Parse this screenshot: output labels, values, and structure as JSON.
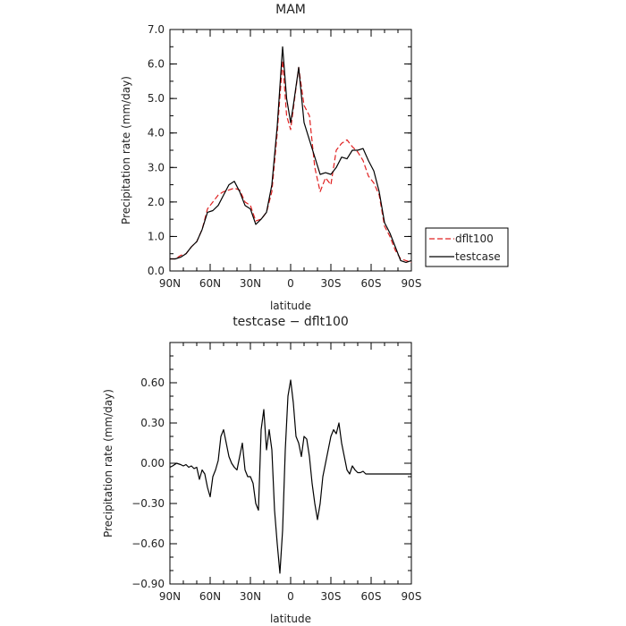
{
  "chart_data": [
    {
      "type": "line",
      "title": "MAM",
      "xlabel": "latitude",
      "ylabel": "Precipitation rate (mm/day)",
      "xlim": [
        90,
        -90
      ],
      "ylim": [
        0.0,
        7.0
      ],
      "xticks": [
        {
          "value": 90,
          "label": "90N"
        },
        {
          "value": 60,
          "label": "60N"
        },
        {
          "value": 30,
          "label": "30N"
        },
        {
          "value": 0,
          "label": "0"
        },
        {
          "value": -30,
          "label": "30S"
        },
        {
          "value": -60,
          "label": "60S"
        },
        {
          "value": -90,
          "label": "90S"
        }
      ],
      "yticks": [
        {
          "value": 0.0,
          "label": "0.0"
        },
        {
          "value": 1.0,
          "label": "1.0"
        },
        {
          "value": 2.0,
          "label": "2.0"
        },
        {
          "value": 3.0,
          "label": "3.0"
        },
        {
          "value": 4.0,
          "label": "4.0"
        },
        {
          "value": 5.0,
          "label": "5.0"
        },
        {
          "value": 6.0,
          "label": "6.0"
        },
        {
          "value": 7.0,
          "label": "7.0"
        }
      ],
      "legend_position": "right",
      "series": [
        {
          "name": "dflt100",
          "color": "#e02020",
          "style": "dashed",
          "x": [
            90,
            86,
            82,
            78,
            74,
            70,
            66,
            62,
            58,
            54,
            50,
            46,
            42,
            38,
            34,
            30,
            26,
            22,
            18,
            14,
            10,
            6,
            3,
            0,
            -2,
            -6,
            -10,
            -14,
            -18,
            -22,
            -26,
            -30,
            -34,
            -38,
            -42,
            -46,
            -50,
            -54,
            -58,
            -62,
            -66,
            -70,
            -74,
            -78,
            -82,
            -86,
            -90
          ],
          "y": [
            0.35,
            0.35,
            0.45,
            0.5,
            0.7,
            0.85,
            1.2,
            1.8,
            2.0,
            2.2,
            2.3,
            2.35,
            2.4,
            2.35,
            2.0,
            1.9,
            1.45,
            1.5,
            1.7,
            2.3,
            4.0,
            6.1,
            4.5,
            4.1,
            4.7,
            5.9,
            4.8,
            4.5,
            3.0,
            2.3,
            2.7,
            2.5,
            3.5,
            3.7,
            3.8,
            3.6,
            3.45,
            3.2,
            2.75,
            2.55,
            2.2,
            1.3,
            1.0,
            0.6,
            0.35,
            0.3,
            0.25
          ]
        },
        {
          "name": "testcase",
          "color": "#000000",
          "style": "solid",
          "x": [
            90,
            86,
            82,
            78,
            74,
            70,
            66,
            62,
            58,
            54,
            50,
            46,
            42,
            38,
            34,
            30,
            26,
            22,
            18,
            14,
            10,
            6,
            3,
            0,
            -2,
            -6,
            -10,
            -14,
            -18,
            -22,
            -26,
            -30,
            -34,
            -38,
            -42,
            -46,
            -50,
            -54,
            -58,
            -62,
            -66,
            -70,
            -74,
            -78,
            -82,
            -86,
            -90
          ],
          "y": [
            0.35,
            0.35,
            0.4,
            0.5,
            0.7,
            0.85,
            1.2,
            1.7,
            1.75,
            1.9,
            2.2,
            2.5,
            2.6,
            2.3,
            1.9,
            1.8,
            1.35,
            1.5,
            1.7,
            2.5,
            4.2,
            6.5,
            5.0,
            4.3,
            4.8,
            5.9,
            4.3,
            3.8,
            3.3,
            2.8,
            2.85,
            2.8,
            3.0,
            3.3,
            3.25,
            3.5,
            3.5,
            3.55,
            3.2,
            2.9,
            2.3,
            1.4,
            1.1,
            0.7,
            0.3,
            0.25,
            0.3
          ]
        }
      ]
    },
    {
      "type": "line",
      "title": "testcase − dflt100",
      "xlabel": "latitude",
      "ylabel": "Precipitation rate (mm/day)",
      "xlim": [
        90,
        -90
      ],
      "ylim": [
        -0.9,
        0.9
      ],
      "xticks": [
        {
          "value": 90,
          "label": "90N"
        },
        {
          "value": 60,
          "label": "60N"
        },
        {
          "value": 30,
          "label": "30N"
        },
        {
          "value": 0,
          "label": "0"
        },
        {
          "value": -30,
          "label": "30S"
        },
        {
          "value": -60,
          "label": "60S"
        },
        {
          "value": -90,
          "label": "90S"
        }
      ],
      "yticks": [
        {
          "value": -0.9,
          "label": "−0.90"
        },
        {
          "value": -0.6,
          "label": "−0.60"
        },
        {
          "value": -0.3,
          "label": "−0.30"
        },
        {
          "value": 0.0,
          "label": "0.00"
        },
        {
          "value": 0.3,
          "label": "0.30"
        },
        {
          "value": 0.6,
          "label": "0.60"
        }
      ],
      "series": [
        {
          "name": "",
          "color": "#000000",
          "style": "solid",
          "x": [
            90,
            88,
            85,
            82,
            80,
            78,
            76,
            74,
            72,
            70,
            68,
            66,
            64,
            62,
            60,
            58,
            56,
            54,
            52,
            50,
            48,
            46,
            44,
            42,
            40,
            38,
            36,
            34,
            32,
            30,
            28,
            26,
            24,
            22,
            20,
            18,
            16,
            14,
            12,
            10,
            8,
            6,
            4,
            2,
            0,
            -2,
            -4,
            -6,
            -8,
            -10,
            -12,
            -14,
            -16,
            -18,
            -20,
            -22,
            -24,
            -26,
            -28,
            -30,
            -32,
            -34,
            -36,
            -38,
            -40,
            -42,
            -44,
            -46,
            -48,
            -50,
            -52,
            -54,
            -56,
            -58,
            -60,
            -62,
            -64,
            -66,
            -68,
            -70,
            -72,
            -74,
            -76,
            -78,
            -80,
            -82,
            -86,
            -90
          ],
          "y": [
            -0.03,
            -0.02,
            0.0,
            -0.01,
            -0.02,
            -0.01,
            -0.03,
            -0.02,
            -0.04,
            -0.03,
            -0.12,
            -0.05,
            -0.08,
            -0.18,
            -0.25,
            -0.1,
            -0.05,
            0.02,
            0.2,
            0.25,
            0.15,
            0.05,
            0.0,
            -0.03,
            -0.05,
            0.05,
            0.15,
            -0.05,
            -0.1,
            -0.1,
            -0.15,
            -0.3,
            -0.35,
            0.25,
            0.4,
            0.1,
            0.25,
            0.1,
            -0.35,
            -0.6,
            -0.82,
            -0.5,
            0.1,
            0.5,
            0.62,
            0.45,
            0.2,
            0.15,
            0.05,
            0.2,
            0.18,
            0.05,
            -0.15,
            -0.3,
            -0.42,
            -0.3,
            -0.1,
            0.0,
            0.1,
            0.2,
            0.25,
            0.22,
            0.3,
            0.15,
            0.05,
            -0.05,
            -0.08,
            -0.02,
            -0.05,
            -0.07,
            -0.07,
            -0.06,
            -0.08,
            -0.08,
            -0.08,
            -0.08,
            -0.08,
            -0.08,
            -0.08,
            -0.08,
            -0.08,
            -0.08,
            -0.08,
            -0.08,
            -0.08,
            -0.08,
            -0.08,
            -0.08
          ]
        }
      ]
    }
  ]
}
